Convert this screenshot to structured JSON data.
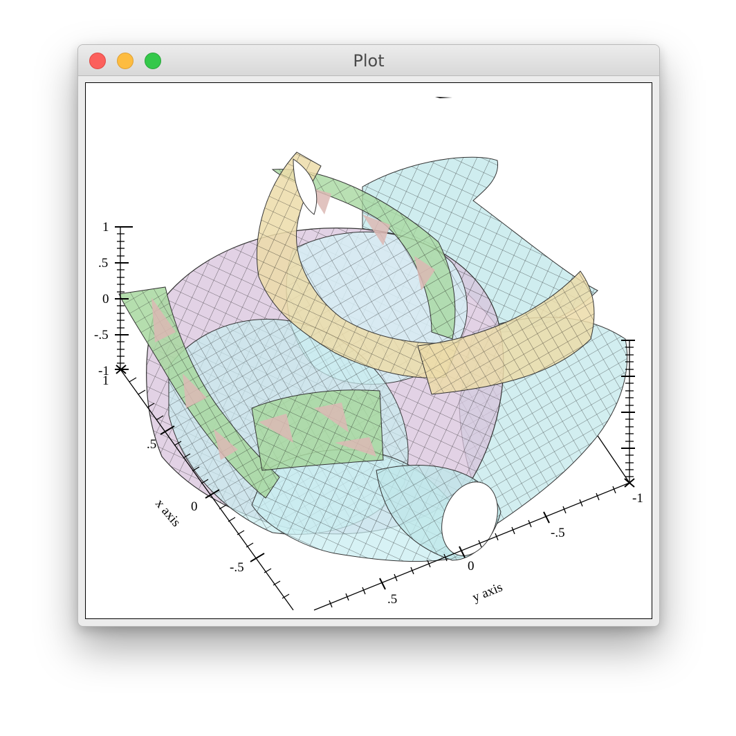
{
  "window": {
    "title": "Plot"
  },
  "icons": {
    "close": "close-dot",
    "minimize": "minimize-dot",
    "zoom": "zoom-dot"
  },
  "colors": {
    "close": "#fc605c",
    "minimize": "#fdbc40",
    "zoom": "#34c84a",
    "surface_cyan": "#bfe7ea",
    "surface_purple": "#d8c3dc",
    "surface_tan": "#ecdca9",
    "surface_green": "#a8d8a0",
    "surface_rose": "#dcb8b4"
  },
  "plot": {
    "z_ticks": [
      "1",
      ".5",
      "0",
      "-.5",
      "-1"
    ],
    "x_ticks": [
      "1",
      ".5",
      "0",
      "-.5"
    ],
    "y_ticks": [
      "-1",
      "-.5",
      "0",
      ".5"
    ],
    "x_label": "x axis",
    "y_label": "y axis"
  }
}
